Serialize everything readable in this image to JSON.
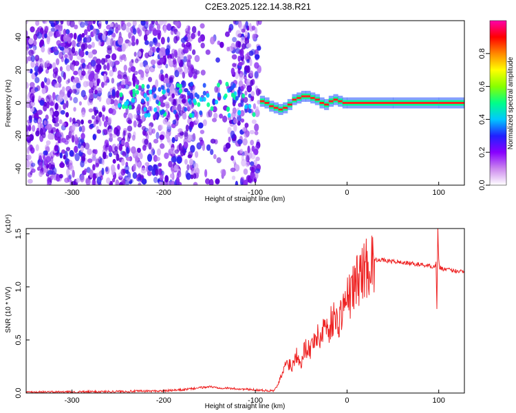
{
  "title": "C2E3.2025.122.14.38.R21",
  "chart_data": [
    {
      "type": "heatmap",
      "title": "C2E3.2025.122.14.38.R21",
      "xlabel": "Height of straight line (km)",
      "ylabel": "Frequency (Hz)",
      "xlim": [
        -350,
        128
      ],
      "ylim": [
        -50,
        50
      ],
      "x_ticks": [
        -300,
        -200,
        -100,
        0,
        100
      ],
      "y_ticks": [
        -40,
        -20,
        0,
        20,
        40
      ],
      "colorbar": {
        "label": "Normalized spectral amplitude",
        "range": [
          0,
          1
        ],
        "ticks": [
          "0.0",
          "0.2",
          "0.4",
          "0.6",
          "0.8"
        ],
        "colors": [
          "#ffffff",
          "#cc88ee",
          "#8800ff",
          "#2020ff",
          "#00c8ff",
          "#00ff88",
          "#88ff00",
          "#ffff00",
          "#ff8800",
          "#ff0000",
          "#ff00aa"
        ]
      },
      "noise_region": {
        "x": [
          -350,
          -95
        ],
        "y_spread": 50
      },
      "gap_region": {
        "x": [
          -165,
          -125
        ]
      },
      "signal_trace": {
        "x": [
          -95,
          -90,
          -85,
          -80,
          -75,
          -70,
          -65,
          -60,
          -55,
          -50,
          -45,
          -40,
          -35,
          -30,
          -25,
          -20,
          -15,
          -10,
          -5,
          0,
          50,
          100,
          128
        ],
        "freq": [
          1,
          0,
          -2,
          -3,
          -4,
          -3,
          -1,
          2,
          3,
          4,
          4,
          3,
          2,
          0,
          -1,
          1,
          2,
          1,
          0,
          0,
          0,
          0,
          0
        ]
      }
    },
    {
      "type": "line",
      "xlabel": "Height of straight line (km)",
      "ylabel": "SNR (10 * V/V)",
      "y_multiplier": "(x10⁴)",
      "xlim": [
        -350,
        128
      ],
      "ylim": [
        0,
        1.55
      ],
      "x_ticks": [
        -300,
        -200,
        -100,
        0,
        100
      ],
      "y_ticks": [
        "0.0",
        "0.5",
        "1.0",
        "1.5"
      ],
      "series": [
        {
          "color": "#ee2222",
          "x": [
            -350,
            -300,
            -250,
            -200,
            -180,
            -160,
            -150,
            -140,
            -120,
            -100,
            -80,
            -75,
            -70,
            -65,
            -60,
            -55,
            -50,
            -45,
            -40,
            -35,
            -30,
            -25,
            -20,
            -15,
            -10,
            -5,
            0,
            5,
            10,
            15,
            20,
            25,
            30,
            35,
            40,
            50,
            60,
            70,
            80,
            90,
            95,
            97,
            98,
            99,
            100,
            101,
            102,
            105,
            110,
            120,
            128
          ],
          "y": [
            0.01,
            0.01,
            0.015,
            0.02,
            0.03,
            0.05,
            0.06,
            0.05,
            0.04,
            0.03,
            0.02,
            0.08,
            0.2,
            0.3,
            0.25,
            0.38,
            0.3,
            0.45,
            0.4,
            0.55,
            0.5,
            0.65,
            0.6,
            0.72,
            0.65,
            0.8,
            0.88,
            0.95,
            1.05,
            1.12,
            1.18,
            1.22,
            1.25,
            1.26,
            1.25,
            1.24,
            1.23,
            1.22,
            1.21,
            1.2,
            1.19,
            1.22,
            0.78,
            1.58,
            1.25,
            1.18,
            1.18,
            1.17,
            1.16,
            1.15,
            1.15
          ]
        }
      ]
    }
  ]
}
